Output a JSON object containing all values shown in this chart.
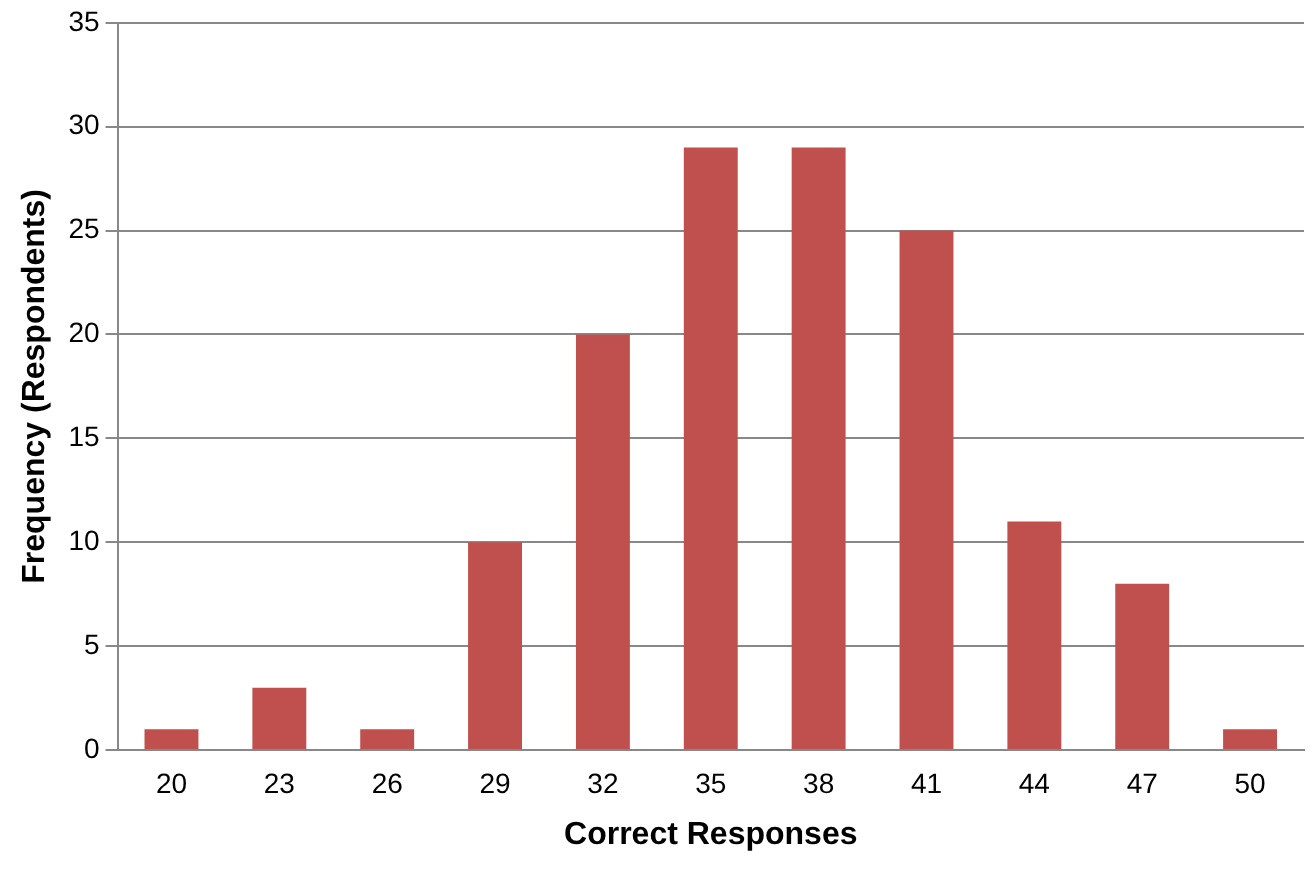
{
  "chart_data": {
    "type": "bar",
    "xlabel": "Correct Responses",
    "ylabel": "Frequency (Respondents)",
    "categories": [
      "20",
      "23",
      "26",
      "29",
      "32",
      "35",
      "38",
      "41",
      "44",
      "47",
      "50"
    ],
    "values": [
      1,
      3,
      1,
      10,
      20,
      29,
      29,
      25,
      11,
      8,
      1
    ],
    "color": "#c0504d",
    "ylim": [
      0,
      35
    ],
    "yticks": [
      0,
      5,
      10,
      15,
      20,
      25,
      30,
      35
    ],
    "grid": "y"
  }
}
